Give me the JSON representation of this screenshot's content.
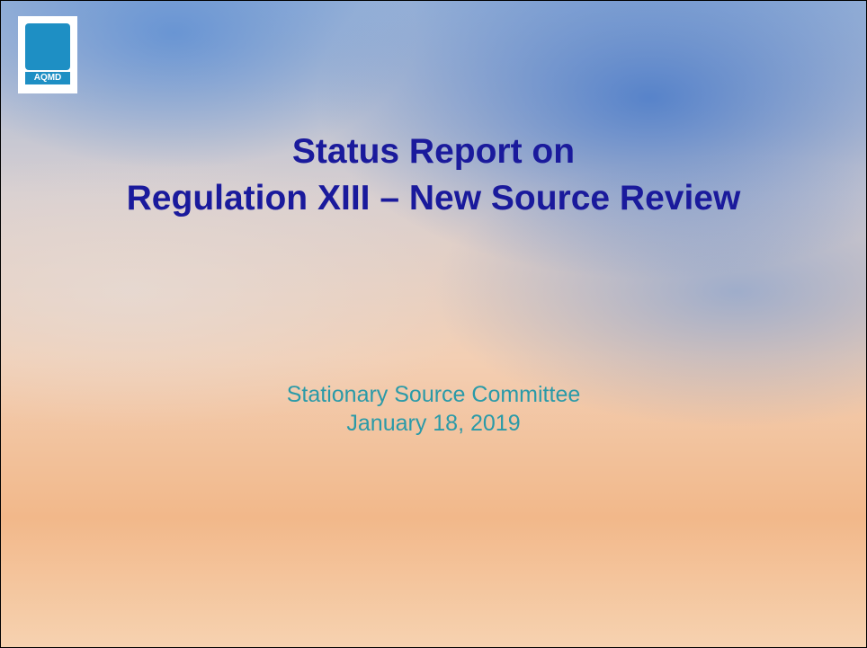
{
  "logo": {
    "label": "AQMD"
  },
  "title": {
    "line1": "Status Report on",
    "line2": "Regulation XIII – New Source Review"
  },
  "subtitle": {
    "line1": "Stationary Source Committee",
    "line2": "January 18, 2019"
  }
}
